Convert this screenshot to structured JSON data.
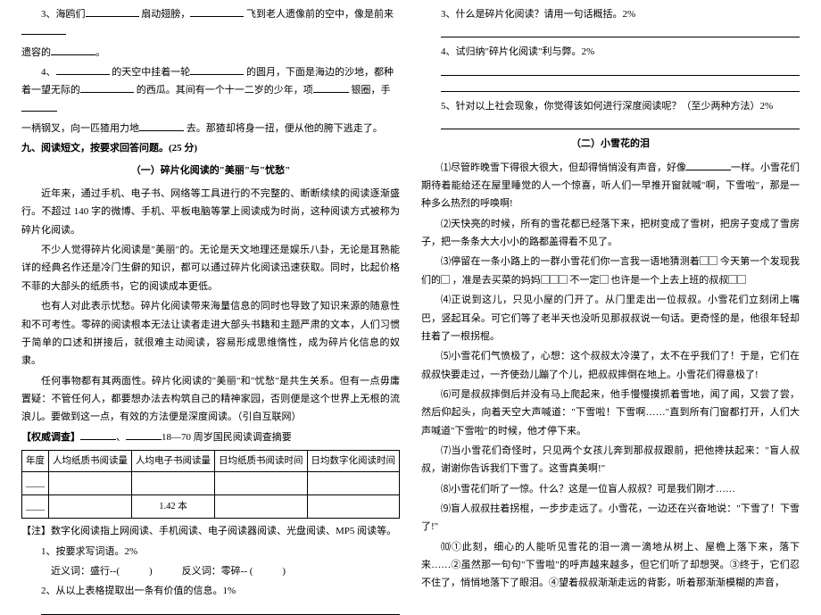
{
  "left": {
    "l3a": "3、海鸥们",
    "l3b": "扇动翅膀，",
    "l3c": "飞到老人遗像前的空中，像是前来",
    "l3d": "遗容的",
    "l3e": "。",
    "l4a": "4、",
    "l4b": "的天空中挂着一轮",
    "l4c": "的圆月，下面是海边的沙地，都种着一望无际的",
    "l4d": "的西瓜。其间有一个十一二岁的少年，项",
    "l4e": "银圈，手",
    "l4f": "一柄钢叉，向一匹猹用力地",
    "l4g": "去。那猹却将身一扭，便从他的胯下逃走了。",
    "sec9": "九、阅读短文，按要求回答问题。(25 分)",
    "title1": "（一）碎片化阅读的\"美丽\"与\"忧愁\"",
    "p1": "近年来，通过手机、电子书、网络等工具进行的不完整的、断断续续的阅读逐渐盛行。不超过 140 字的微博、手机、平板电脑等掌上阅读成为时尚，这种阅读方式被称为碎片化阅读。",
    "p2": "不少人觉得碎片化阅读是\"美丽\"的。无论是天文地理还是娱乐八卦，无论是耳熟能详的经典名作还是冷门生僻的知识，都可以通过碎片化阅读迅速获取。同时，比起价格不菲的大部头的纸质书，它的阅读成本更低。",
    "p3": "也有人对此表示忧愁。碎片化阅读带来海量信息的同时也导致了知识来源的随意性和不可考性。零碎的阅读根本无法让读者走进大部头书籍和主题严肃的文本，人们习惯于简单的口述和拼接后，就很难主动阅读，容易形成思维惰性，成为碎片化信息的奴隶。",
    "p4": "任何事物都有其两面性。碎片化阅读的\"美丽\"和\"忧愁\"是共生关系。但有一点毋庸置疑：不管任何人，都要想办法去构筑自己的精神家园，否则便是这个世界上无根的流浪儿。要做到这一点，有效的方法便是深度阅读。（引自互联网）",
    "survey_lead_a": "【权威调查】",
    "survey_lead_b": "、",
    "survey_lead_c": "18—70 周岁国民阅读调查摘要",
    "th1": "年度",
    "th2": "人均纸质书阅读量",
    "th3": "人均电子书阅读量",
    "th4": "日均纸质书阅读时间",
    "th5": "日均数字化阅读时间",
    "cell_val": "1.42 本",
    "note": "【注】数字化阅读指上网阅读、手机阅读、电子阅读器阅读、光盘阅读、MP5 阅读等。",
    "q1": "1、按要求写词语。2%",
    "q1a": "近义词：盛行--(　　　)　　　反义词：零碎-- (　　　)",
    "q2": "2、从以上表格提取出一条有价值的信息。1%"
  },
  "right": {
    "q3": "3、什么是碎片化阅读？请用一句话概括。2%",
    "q4": "4、试归纳\"碎片化阅读\"利与弊。2%",
    "q5": "5、针对以上社会现象，你觉得该如何进行深度阅读呢？（至少两种方法）2%",
    "title2": "（二）小雪花的泪",
    "p1a": "⑴尽管昨晚雪下得很大很大，但却得悄悄没有声音，好像",
    "p1b": "一样。小雪花们期待着能给还在屋里睡觉的人一个惊喜，听人们一早推开窗就喊\"啊，下雪啦\"，那是一种多么热烈的呼唤啊!",
    "p2": "⑵天快亮的时候，所有的雪花都已经落下来，把树变成了雪树，把房子变成了雪房子，把一条条大大小小的路都盖得看不见了。",
    "p3a": "⑶停留在一条小路上的一群小雪花们你一言我一语地猜测着",
    "p3b": "今天第一个发现我们的",
    "p3c": "，准是去买菜的妈妈",
    "p3d": "不一定",
    "p3e": "也许是一个上去上班的叔叔",
    "p4": "⑷正说到这儿，只见小屋的门开了。从门里走出一位叔叔。小雪花们立刻闭上嘴巴，竖起耳朵。可它们等了老半天也没听见那叔叔说一句话。更奇怪的是，他很年轻却拄着了一根拐棍。",
    "p5": "⑸小雪花们气愤极了，心想：这个叔叔太冷漠了，太不在乎我们了！于是，它们在叔叔快要走过，一齐使劲儿蹦了个儿，把叔叔摔倒在地上。小雪花们得意极了!",
    "p6": "⑹可是叔叔摔倒后并没有马上爬起来，他手慢慢摸抓着雪地，闻了闻，又尝了尝，然后仰起头，向着天空大声喊道：\"下雪啦！下雪啊……\"直到所有门窗都打开，人们大声喊道\"下雪啦\"的时候，他才停下来。",
    "p7": "⑺当小雪花们奇怪时，只见两个女孩儿奔到那叔叔跟前，把他搀扶起来：\"盲人叔叔，谢谢你告诉我们下雪了。这雪真美啊!\"",
    "p8": "⑻小雪花们听了一惊。什么？这是一位盲人叔叔？可是我们刚才……",
    "p9": "⑼盲人叔叔拄着拐棍，一步步走远了。小雪花，一边还在兴奋地说：\"下雪了！下雪了!\"",
    "p10": "⑽①此刻，细心的人能听见雪花的泪一滴一滴地从树上、屋檐上落下来，落下来……②虽然那一句句\"下雪啦\"的呼声越来越多，但它们听了却想哭。③终于，它们忍不住了，悄悄地落下了眼泪。④望着叔叔渐渐走远的背影，听着那渐渐模糊的声音，"
  }
}
